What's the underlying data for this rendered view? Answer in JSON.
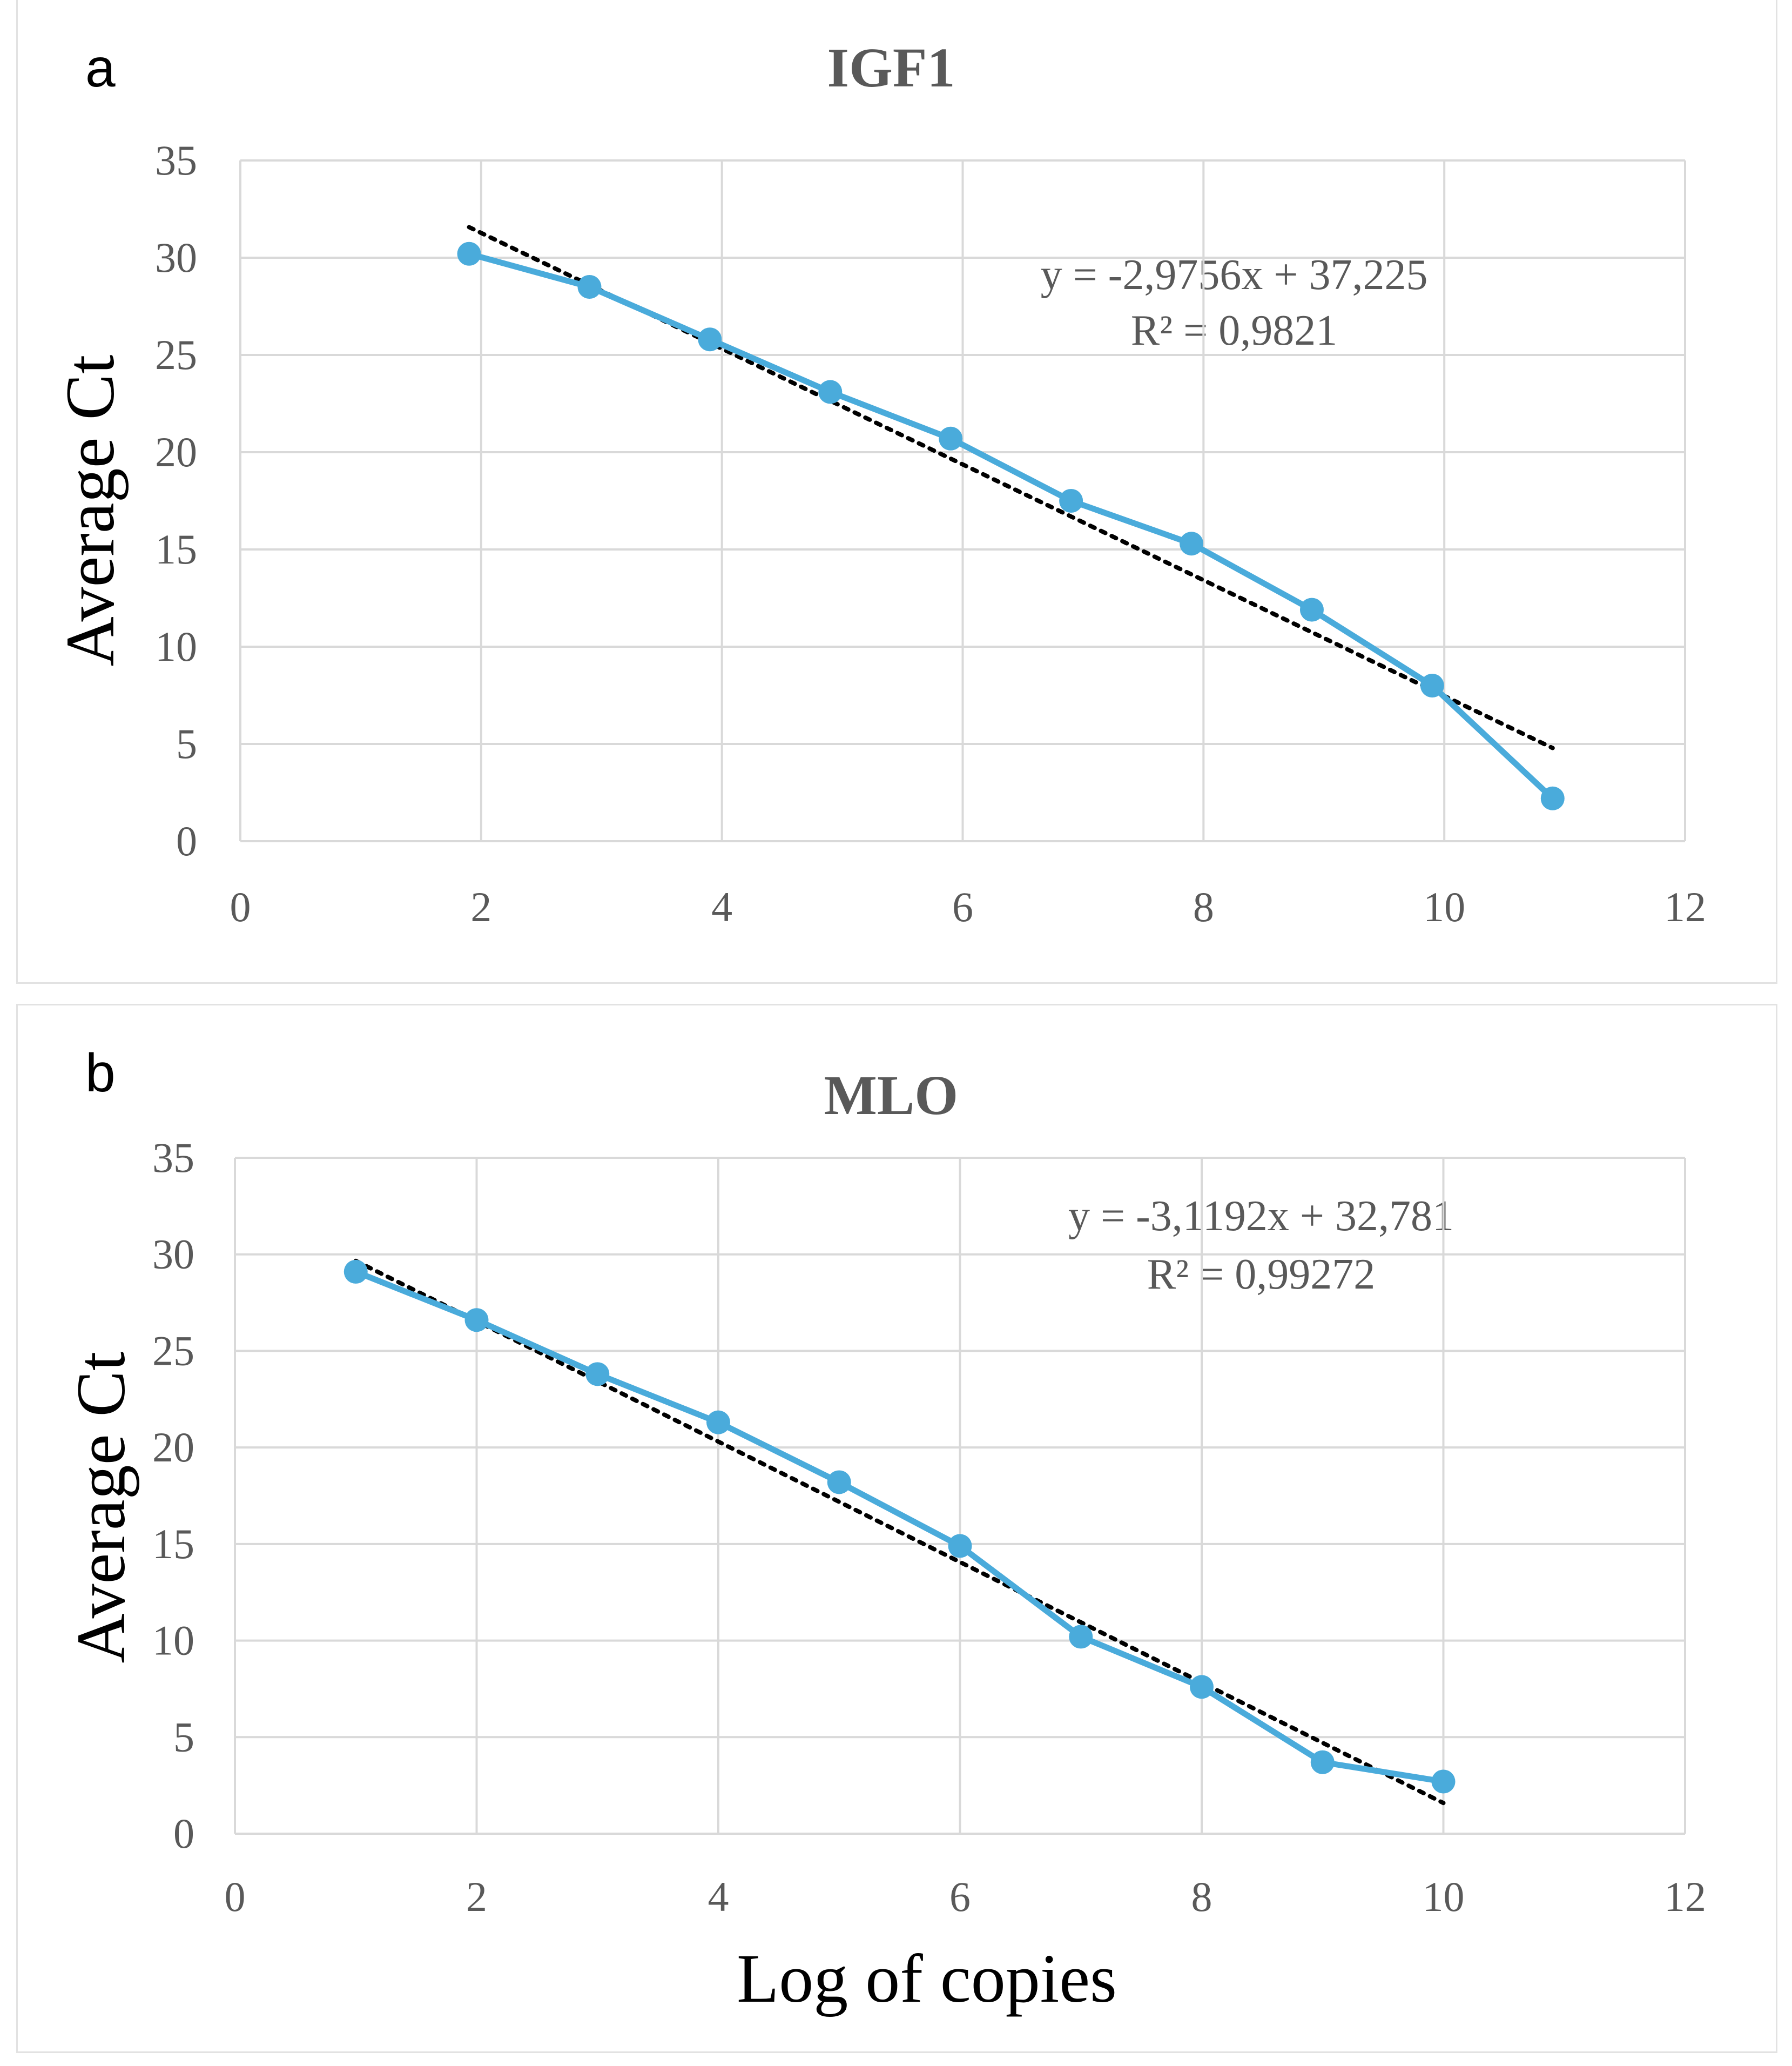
{
  "chart_data": [
    {
      "type": "scatter",
      "panel_letter": "a",
      "title": "IGF1",
      "xlabel": "",
      "ylabel": "Average Ct",
      "xlim": [
        0,
        12
      ],
      "ylim": [
        0,
        35
      ],
      "x_ticks": [
        "0",
        "2",
        "4",
        "6",
        "8",
        "10",
        "12"
      ],
      "y_ticks": [
        "0",
        "5",
        "10",
        "15",
        "20",
        "25",
        "30",
        "35"
      ],
      "grid": true,
      "series": [
        {
          "name": "Average Ct",
          "color": "#4aabdb",
          "x": [
            1.9,
            2.9,
            3.9,
            4.9,
            5.9,
            6.9,
            7.9,
            8.9,
            9.9,
            10.9
          ],
          "y": [
            30.2,
            28.5,
            25.8,
            23.1,
            20.7,
            17.5,
            15.3,
            11.9,
            8.0,
            2.2
          ]
        }
      ],
      "trendline": {
        "slope": -2.9756,
        "intercept": 37.225,
        "x_range": [
          1.9,
          10.9
        ],
        "color": "#000000"
      },
      "equation": "y = -2,9756x + 37,225",
      "r_squared": "R² = 0,9821"
    },
    {
      "type": "scatter",
      "panel_letter": "b",
      "title": "MLO",
      "xlabel": "Log of copies",
      "ylabel": "Average Ct",
      "xlim": [
        0,
        12
      ],
      "ylim": [
        0,
        35
      ],
      "x_ticks": [
        "0",
        "2",
        "4",
        "6",
        "8",
        "10",
        "12"
      ],
      "y_ticks": [
        "0",
        "5",
        "10",
        "15",
        "20",
        "25",
        "30",
        "35"
      ],
      "grid": true,
      "series": [
        {
          "name": "Average Ct",
          "color": "#4aabdb",
          "x": [
            1,
            2,
            3,
            4,
            5,
            6,
            7,
            8,
            9,
            10
          ],
          "y": [
            29.1,
            26.6,
            23.8,
            21.3,
            18.2,
            14.9,
            10.2,
            7.6,
            3.7,
            2.7
          ]
        }
      ],
      "trendline": {
        "slope": -3.1192,
        "intercept": 32.781,
        "x_range": [
          1,
          10
        ],
        "color": "#000000"
      },
      "equation": "y = -3,1192x + 32,781",
      "r_squared": "R² = 0,99272"
    }
  ]
}
